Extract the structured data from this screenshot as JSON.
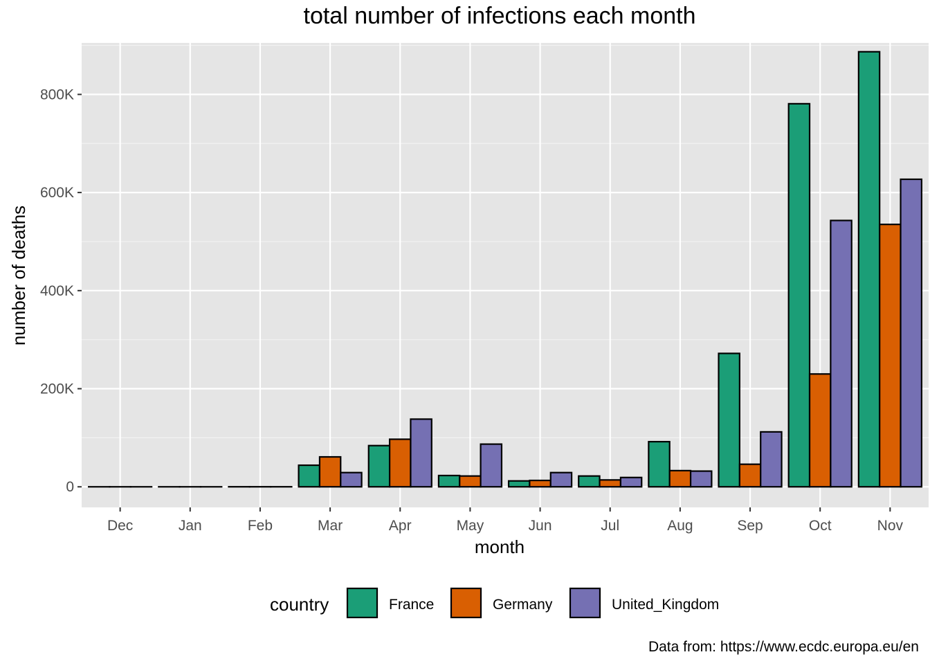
{
  "chart_data": {
    "type": "bar",
    "title": "total number of infections each month",
    "xlabel": "month",
    "ylabel": "number of deaths",
    "caption": "Data from: https://www.ecdc.europa.eu/en",
    "categories": [
      "Dec",
      "Jan",
      "Feb",
      "Mar",
      "Apr",
      "May",
      "Jun",
      "Jul",
      "Aug",
      "Sep",
      "Oct",
      "Nov"
    ],
    "ylim": [
      -42000,
      905000
    ],
    "yticks": [
      0,
      200000,
      400000,
      600000,
      800000
    ],
    "ytick_labels": [
      "0",
      "200K",
      "400K",
      "600K",
      "800K"
    ],
    "grid": true,
    "legend": {
      "title": "country",
      "position": "bottom"
    },
    "series": [
      {
        "name": "France",
        "color": "#1B9E77",
        "values": [
          0,
          0,
          100,
          44000,
          84000,
          23000,
          12000,
          22000,
          92000,
          272000,
          781000,
          887000
        ]
      },
      {
        "name": "Germany",
        "color": "#D95F02",
        "values": [
          0,
          0,
          100,
          61000,
          97000,
          22000,
          13000,
          14000,
          33000,
          46000,
          230000,
          535000
        ]
      },
      {
        "name": "United_Kingdom",
        "color": "#7570B3",
        "values": [
          0,
          0,
          100,
          29000,
          138000,
          87000,
          29000,
          19000,
          32000,
          112000,
          543000,
          627000
        ]
      }
    ]
  }
}
